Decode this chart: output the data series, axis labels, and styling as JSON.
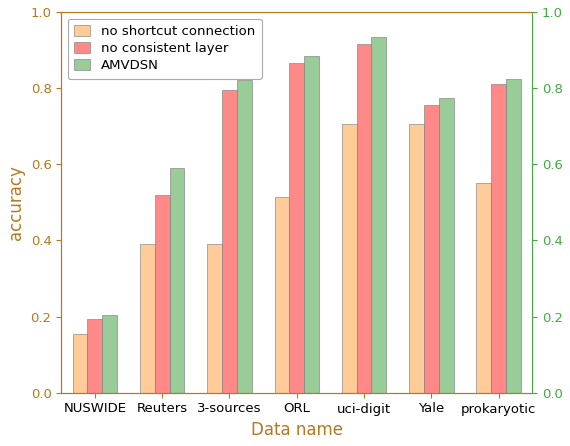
{
  "categories": [
    "NUSWIDE",
    "Reuters",
    "3-sources",
    "ORL",
    "uci-digit",
    "Yale",
    "prokaryotic"
  ],
  "no_shortcut": [
    0.155,
    0.39,
    0.39,
    0.515,
    0.705,
    0.705,
    0.55
  ],
  "no_consistent": [
    0.195,
    0.52,
    0.795,
    0.865,
    0.915,
    0.755,
    0.81
  ],
  "amvdsn": [
    0.205,
    0.59,
    0.82,
    0.885,
    0.935,
    0.775,
    0.825
  ],
  "color_shortcut": "#FFCC99",
  "color_consistent": "#FF8888",
  "color_amvdsn": "#99CC99",
  "bar_edge_color": "#777777",
  "bar_edge_width": 0.4,
  "xlabel": "Data name",
  "ylabel": "accuracy",
  "ylim": [
    0,
    1.0
  ],
  "yticks": [
    0,
    0.2,
    0.4,
    0.6,
    0.8,
    1.0
  ],
  "legend_labels": [
    "no shortcut connection",
    "no consistent layer",
    "AMVDSN"
  ],
  "left_axis_color": "#B87820",
  "right_axis_color": "#44AA44",
  "xlabel_fontsize": 12,
  "ylabel_fontsize": 12,
  "tick_fontsize": 9.5,
  "legend_fontsize": 9.5,
  "bar_width": 0.22,
  "fig_bg": "#ffffff"
}
